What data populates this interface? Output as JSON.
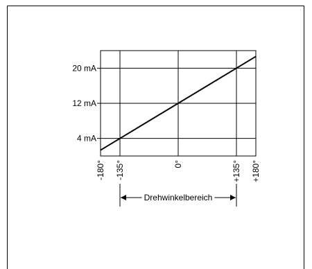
{
  "chart_data": {
    "type": "line",
    "title": "",
    "xlabel": "Drehwinkelbereich",
    "ylabel": "",
    "xlim": [
      -180,
      180
    ],
    "ylim": [
      0,
      24
    ],
    "x_ticks": [
      {
        "value": -180,
        "label": "-180°"
      },
      {
        "value": -135,
        "label": "-135°"
      },
      {
        "value": 0,
        "label": "0°"
      },
      {
        "value": 135,
        "label": "+135°"
      },
      {
        "value": 180,
        "label": "+180°"
      }
    ],
    "y_ticks": [
      {
        "value": 4,
        "label": "4 mA"
      },
      {
        "value": 12,
        "label": "12 mA"
      },
      {
        "value": 20,
        "label": "20 mA"
      }
    ],
    "series": [
      {
        "x": [
          -180,
          180
        ],
        "y": [
          1.33,
          22.67
        ]
      }
    ],
    "range_marker": {
      "from": -135,
      "to": 135,
      "label": "Drehwinkelbereich"
    },
    "grid": true,
    "colors": {
      "line": "#000000",
      "grid": "#000000"
    }
  }
}
